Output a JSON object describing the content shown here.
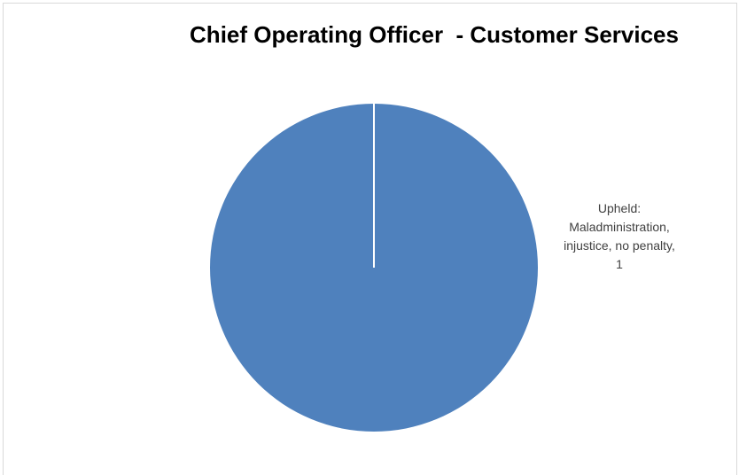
{
  "chart_data": {
    "type": "pie",
    "title": "Chief Operating Officer  - Customer Services",
    "values": [
      1
    ],
    "value_labels": [
      "Upheld: Maladministration, injustice, no penalty, 1"
    ],
    "colors": [
      "#4f81bd"
    ]
  }
}
